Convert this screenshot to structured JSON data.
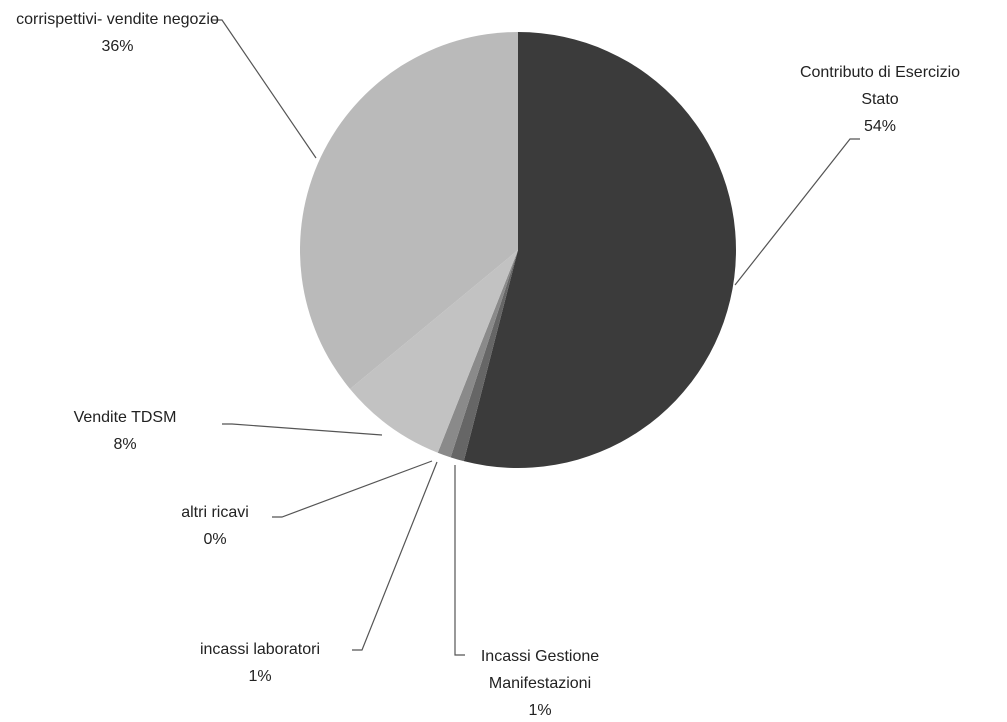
{
  "chart_data": {
    "type": "pie",
    "categories": [
      "Contributo di Esercizio Stato",
      "Incassi Gestione Manifestazioni",
      "incassi laboratori",
      "altri ricavi",
      "Vendite TDSM",
      "corrispettivi- vendite negozio"
    ],
    "values": [
      54,
      1,
      1,
      0,
      8,
      36
    ],
    "value_labels": [
      "54%",
      "1%",
      "1%",
      "0%",
      "8%",
      "36%"
    ],
    "colors": [
      "#3b3b3b",
      "#666666",
      "#8a8a8a",
      "#a8a8a8",
      "#c2c2c2",
      "#bababa"
    ]
  }
}
